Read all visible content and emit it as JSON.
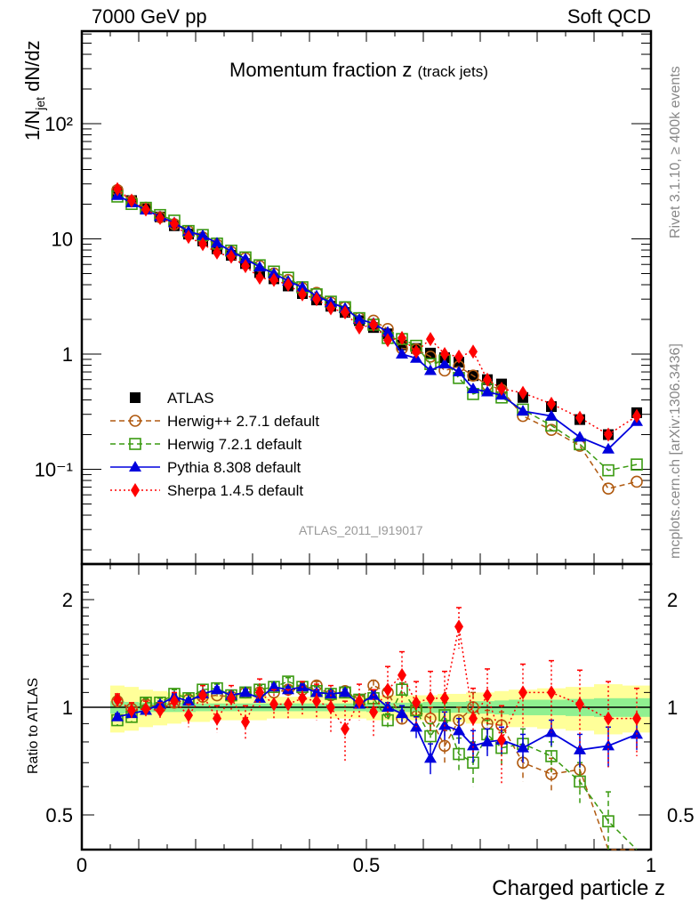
{
  "header": {
    "energy_label": "7000 GeV pp",
    "category_label": "Soft QCD"
  },
  "side_labels": {
    "rivet": "Rivet 3.1.10, ≥ 400k events",
    "mcplots": "mcplots.cern.ch [arXiv:1306.3436]"
  },
  "analysis_id": "ATLAS_2011_I919017",
  "chart_data": [
    {
      "type": "scatter",
      "panel": "main",
      "title": "Momentum fraction z",
      "title_suffix": "(track jets)",
      "xlabel": "",
      "ylabel": "1/N_jet dN/dz",
      "yscale": "log",
      "xlim": [
        0,
        1
      ],
      "ylim": [
        0.015,
        700
      ],
      "y_ticks": [
        {
          "value": 0.1,
          "label": "10⁻¹"
        },
        {
          "value": 1,
          "label": "1"
        },
        {
          "value": 10,
          "label": "10"
        },
        {
          "value": 100,
          "label": "10²"
        }
      ],
      "legend_position": "lower-left",
      "x": [
        0.0625,
        0.0875,
        0.1125,
        0.1375,
        0.1625,
        0.1875,
        0.2125,
        0.2375,
        0.2625,
        0.2875,
        0.3125,
        0.3375,
        0.3625,
        0.3875,
        0.4125,
        0.4375,
        0.4625,
        0.4875,
        0.5125,
        0.5375,
        0.5625,
        0.5875,
        0.6125,
        0.6375,
        0.6625,
        0.6875,
        0.7125,
        0.7375,
        0.775,
        0.825,
        0.875,
        0.925,
        0.975
      ],
      "series": [
        {
          "name": "ATLAS",
          "color": "#000000",
          "marker": "square-filled",
          "line": "none",
          "values": [
            25.5,
            21.5,
            18.2,
            15.5,
            13.0,
            11.0,
            9.6,
            8.2,
            7.2,
            6.1,
            5.1,
            4.5,
            3.9,
            3.35,
            2.95,
            2.6,
            2.3,
            1.95,
            1.7,
            1.5,
            1.2,
            1.12,
            1.02,
            0.93,
            0.85,
            0.65,
            0.6,
            0.55,
            0.42,
            0.35,
            0.27,
            0.2,
            0.31
          ]
        },
        {
          "name": "Herwig++ 2.7.1 default",
          "color": "#b05a10",
          "marker": "circle-open",
          "line": "dashed",
          "values": [
            26.5,
            21.3,
            18.6,
            15.4,
            13.4,
            11.6,
            10.3,
            8.9,
            7.7,
            6.8,
            5.8,
            5.0,
            4.4,
            3.75,
            3.4,
            2.8,
            2.55,
            2.05,
            1.95,
            1.65,
            1.12,
            1.1,
            0.95,
            0.72,
            0.78,
            0.65,
            0.54,
            0.49,
            0.29,
            0.22,
            0.16,
            0.068,
            0.078
          ]
        },
        {
          "name": "Herwig 7.2.1 default",
          "color": "#3a9a10",
          "marker": "square-open",
          "line": "dashed",
          "values": [
            23.3,
            20.1,
            18.6,
            16.1,
            14.4,
            11.7,
            10.8,
            9.1,
            7.9,
            6.9,
            5.9,
            5.2,
            4.6,
            3.8,
            3.3,
            2.85,
            2.55,
            2.05,
            1.8,
            1.38,
            1.35,
            1.18,
            0.82,
            0.88,
            0.62,
            0.45,
            0.5,
            0.42,
            0.33,
            0.24,
            0.165,
            0.098,
            0.11
          ]
        },
        {
          "name": "Pythia 8.308 default",
          "color": "#0000dd",
          "marker": "triangle-filled",
          "line": "solid",
          "values": [
            23.8,
            20.6,
            17.8,
            15.6,
            13.8,
            11.6,
            10.7,
            9.2,
            7.8,
            6.7,
            5.7,
            5.0,
            4.3,
            3.8,
            3.2,
            2.8,
            2.5,
            2.0,
            1.85,
            1.55,
            1.0,
            0.92,
            0.72,
            0.82,
            0.7,
            0.5,
            0.47,
            0.44,
            0.32,
            0.29,
            0.19,
            0.15,
            0.26
          ]
        },
        {
          "name": "Sherpa 1.4.5 default",
          "color": "#ff0000",
          "marker": "diamond-filled",
          "line": "dotted",
          "values": [
            27.0,
            21.5,
            18.0,
            15.2,
            13.5,
            10.4,
            9.0,
            7.6,
            7.0,
            5.8,
            4.6,
            4.4,
            4.0,
            3.3,
            3.0,
            2.5,
            2.3,
            1.7,
            1.8,
            1.32,
            1.38,
            1.05,
            1.35,
            1.0,
            0.95,
            1.05,
            0.6,
            0.5,
            0.46,
            0.37,
            0.28,
            0.2,
            0.29
          ]
        }
      ]
    },
    {
      "type": "scatter",
      "panel": "ratio",
      "xlabel": "Charged particle z",
      "ylabel": "Ratio to ATLAS",
      "yscale": "log",
      "xlim": [
        0,
        1
      ],
      "ylim": [
        0.35,
        2.4
      ],
      "x_ticks": [
        {
          "value": 0,
          "label": "0"
        },
        {
          "value": 0.5,
          "label": "0.5"
        },
        {
          "value": 1,
          "label": "1"
        }
      ],
      "y_ticks": [
        {
          "value": 0.5,
          "label": "0.5"
        },
        {
          "value": 1,
          "label": "1"
        },
        {
          "value": 2,
          "label": "2"
        }
      ],
      "bin_edges": [
        0.05,
        0.075,
        0.1,
        0.125,
        0.15,
        0.175,
        0.2,
        0.225,
        0.25,
        0.275,
        0.3,
        0.325,
        0.35,
        0.375,
        0.4,
        0.425,
        0.45,
        0.475,
        0.5,
        0.525,
        0.55,
        0.575,
        0.6,
        0.625,
        0.65,
        0.675,
        0.7,
        0.725,
        0.75,
        0.8,
        0.85,
        0.9,
        0.95,
        1.0
      ],
      "band_stat": {
        "name": "stat uncertainty",
        "color": "#90f090",
        "half_width": [
          0.04,
          0.035,
          0.03,
          0.03,
          0.03,
          0.03,
          0.025,
          0.025,
          0.025,
          0.025,
          0.025,
          0.025,
          0.025,
          0.025,
          0.025,
          0.025,
          0.025,
          0.025,
          0.03,
          0.03,
          0.03,
          0.03,
          0.035,
          0.035,
          0.035,
          0.04,
          0.04,
          0.045,
          0.05,
          0.05,
          0.055,
          0.06,
          0.06
        ]
      },
      "band_total": {
        "name": "total uncertainty",
        "color": "#ffff99",
        "half_width": [
          0.15,
          0.14,
          0.12,
          0.11,
          0.1,
          0.09,
          0.09,
          0.08,
          0.08,
          0.08,
          0.08,
          0.07,
          0.07,
          0.07,
          0.07,
          0.07,
          0.07,
          0.07,
          0.08,
          0.08,
          0.08,
          0.08,
          0.08,
          0.09,
          0.09,
          0.1,
          0.1,
          0.11,
          0.12,
          0.13,
          0.14,
          0.16,
          0.15
        ]
      },
      "series": [
        {
          "name": "Herwig++ 2.7.1 default",
          "color": "#b05a10",
          "marker": "circle-open",
          "line": "dashed",
          "values": [
            1.04,
            0.99,
            1.02,
            1.0,
            1.03,
            1.05,
            1.07,
            1.08,
            1.07,
            1.1,
            1.1,
            1.1,
            1.12,
            1.12,
            1.15,
            1.08,
            1.11,
            1.05,
            1.15,
            1.1,
            0.93,
            0.98,
            0.93,
            0.78,
            0.92,
            1.0,
            0.9,
            0.89,
            0.7,
            0.65,
            0.67,
            0.34,
            0.25
          ],
          "errors": [
            0.04,
            0.03,
            0.03,
            0.03,
            0.03,
            0.03,
            0.03,
            0.03,
            0.03,
            0.03,
            0.03,
            0.03,
            0.03,
            0.03,
            0.03,
            0.03,
            0.03,
            0.03,
            0.04,
            0.04,
            0.05,
            0.06,
            0.07,
            0.08,
            0.08,
            0.1,
            0.08,
            0.08,
            0.08,
            0.07,
            0.08,
            0.1,
            0.1
          ]
        },
        {
          "name": "Herwig 7.2.1 default",
          "color": "#3a9a10",
          "marker": "square-open",
          "line": "dashed",
          "values": [
            0.92,
            0.94,
            1.03,
            1.03,
            1.09,
            1.06,
            1.12,
            1.13,
            1.08,
            1.1,
            1.12,
            1.14,
            1.18,
            1.14,
            1.11,
            1.09,
            1.1,
            1.05,
            1.06,
            0.92,
            1.12,
            0.98,
            0.83,
            0.95,
            0.74,
            0.7,
            0.84,
            0.77,
            0.79,
            0.73,
            0.62,
            0.48,
            0.36
          ],
          "errors": [
            0.03,
            0.03,
            0.03,
            0.03,
            0.03,
            0.03,
            0.03,
            0.03,
            0.03,
            0.03,
            0.03,
            0.03,
            0.03,
            0.03,
            0.03,
            0.03,
            0.03,
            0.03,
            0.04,
            0.04,
            0.05,
            0.06,
            0.07,
            0.08,
            0.08,
            0.1,
            0.08,
            0.08,
            0.08,
            0.07,
            0.08,
            0.1,
            0.1
          ]
        },
        {
          "name": "Pythia 8.308 default",
          "color": "#0000dd",
          "marker": "triangle-filled",
          "line": "solid",
          "values": [
            0.94,
            0.96,
            0.98,
            1.02,
            1.07,
            1.04,
            1.09,
            1.12,
            1.08,
            1.1,
            1.06,
            1.14,
            1.12,
            1.14,
            1.1,
            1.09,
            1.1,
            1.02,
            1.08,
            1.0,
            0.96,
            0.88,
            0.72,
            0.89,
            0.86,
            0.78,
            0.8,
            0.81,
            0.77,
            0.85,
            0.76,
            0.78,
            0.84
          ],
          "errors": [
            0.02,
            0.02,
            0.02,
            0.02,
            0.02,
            0.02,
            0.02,
            0.02,
            0.02,
            0.02,
            0.02,
            0.02,
            0.02,
            0.02,
            0.02,
            0.02,
            0.02,
            0.02,
            0.03,
            0.03,
            0.05,
            0.06,
            0.07,
            0.08,
            0.07,
            0.08,
            0.07,
            0.07,
            0.07,
            0.07,
            0.08,
            0.1,
            0.08
          ]
        },
        {
          "name": "Sherpa 1.4.5 default",
          "color": "#ff0000",
          "marker": "diamond-filled",
          "line": "dotted",
          "values": [
            1.05,
            0.98,
            0.99,
            0.98,
            1.04,
            0.95,
            1.08,
            0.93,
            1.06,
            0.91,
            1.1,
            1.02,
            1.02,
            1.06,
            1.04,
            1.0,
            0.87,
            1.04,
            0.97,
            1.12,
            1.23,
            1.03,
            1.06,
            1.06,
            1.68,
            0.93,
            1.08,
            0.81,
            1.1,
            1.1,
            1.02,
            0.93,
            0.93
          ],
          "errors": [
            0.04,
            0.05,
            0.05,
            0.05,
            0.06,
            0.07,
            0.07,
            0.08,
            0.09,
            0.1,
            0.1,
            0.1,
            0.1,
            0.12,
            0.12,
            0.15,
            0.17,
            0.12,
            0.15,
            0.18,
            0.2,
            0.15,
            0.2,
            0.2,
            0.22,
            0.2,
            0.2,
            0.2,
            0.22,
            0.25,
            0.25,
            0.25,
            0.2
          ]
        }
      ]
    }
  ]
}
